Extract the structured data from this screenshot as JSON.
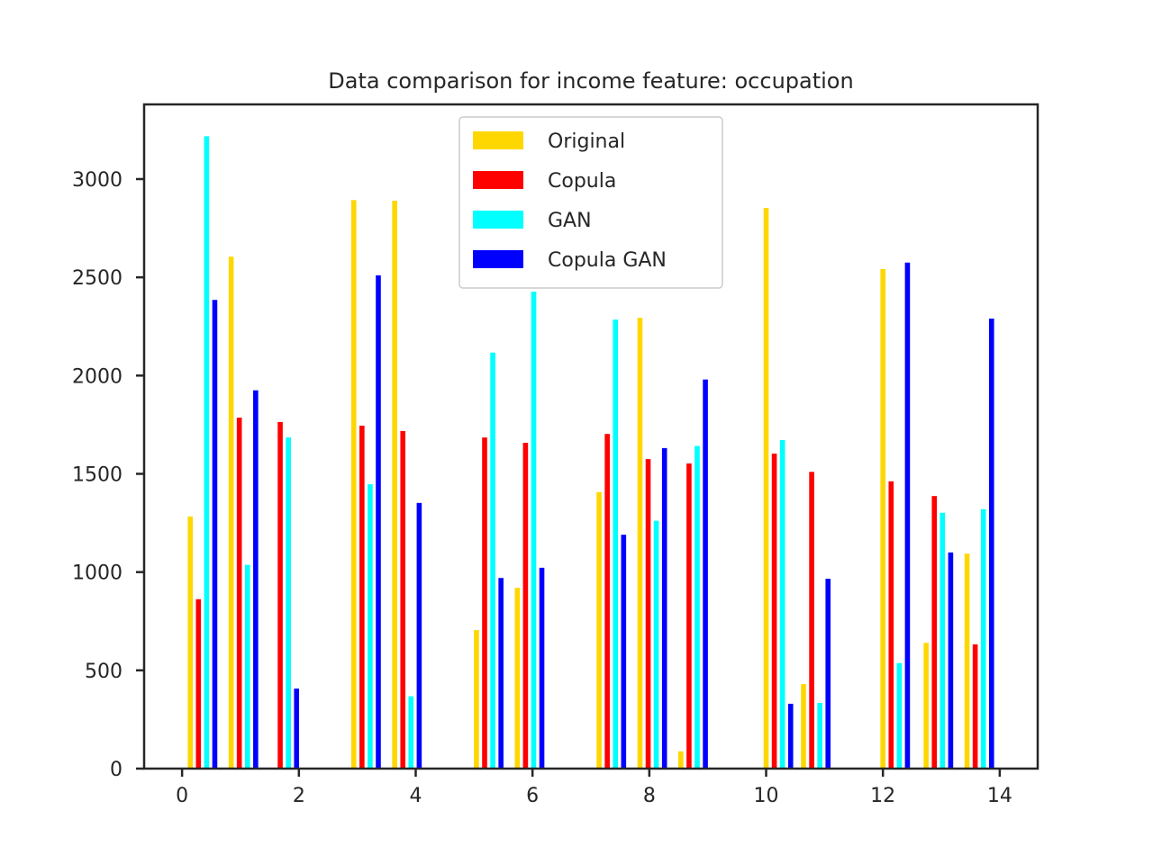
{
  "chart_data": {
    "type": "bar",
    "title": "Data comparison for income feature: occupation",
    "xlabel": "",
    "ylabel": "",
    "xlim": [
      -0.65,
      14.65
    ],
    "ylim": [
      0,
      3380
    ],
    "x_ticks": [
      0,
      2,
      4,
      6,
      8,
      10,
      12,
      14
    ],
    "y_ticks": [
      0,
      500,
      1000,
      1500,
      2000,
      2500,
      3000
    ],
    "grid": false,
    "legend_position": "top-center",
    "series": [
      {
        "name": "Original",
        "color": "#FFD700",
        "x": [
          0.14,
          0.84,
          2.94,
          3.64,
          5.04,
          5.74,
          7.14,
          7.84,
          8.54,
          10.0,
          10.64,
          12.0,
          12.74,
          13.44
        ],
        "values": [
          1283,
          2605,
          2893,
          2890,
          705,
          920,
          1407,
          2294,
          88,
          2853,
          430,
          2542,
          640,
          1094
        ]
      },
      {
        "name": "Copula",
        "color": "#FF0000",
        "x": [
          0.28,
          0.98,
          1.68,
          3.08,
          3.78,
          5.18,
          5.88,
          7.28,
          7.98,
          8.68,
          10.14,
          10.78,
          12.14,
          12.88,
          13.58
        ],
        "values": [
          862,
          1786,
          1764,
          1745,
          1718,
          1685,
          1658,
          1703,
          1575,
          1553,
          1603,
          1510,
          1462,
          1387,
          632
        ]
      },
      {
        "name": "GAN",
        "color": "#00FFFF",
        "x": [
          0.42,
          1.12,
          1.82,
          3.22,
          3.92,
          5.32,
          6.02,
          7.42,
          8.12,
          8.82,
          10.28,
          10.92,
          12.28,
          13.02,
          13.72
        ],
        "values": [
          3218,
          1037,
          1685,
          1447,
          368,
          2117,
          2427,
          2285,
          1261,
          1642,
          1672,
          334,
          537,
          1302,
          1320
        ]
      },
      {
        "name": "Copula GAN",
        "color": "#0000FF",
        "x": [
          0.56,
          1.26,
          1.96,
          3.36,
          4.06,
          5.46,
          6.16,
          7.56,
          8.26,
          8.96,
          10.42,
          11.06,
          12.42,
          13.16,
          13.86
        ],
        "values": [
          2385,
          1925,
          407,
          2510,
          1352,
          970,
          1022,
          1190,
          1631,
          1980,
          330,
          966,
          2575,
          1100,
          2290
        ]
      }
    ]
  }
}
